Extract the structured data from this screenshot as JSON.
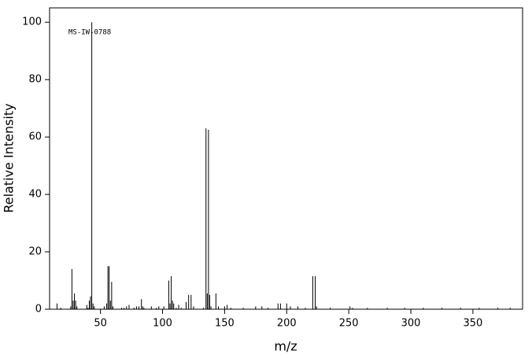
{
  "chart_data": {
    "type": "spectrum",
    "annotation": "MS-IW-0788",
    "x_label": "m/z",
    "y_label": "Relative Intensity",
    "xlim": [
      9,
      390
    ],
    "ylim": [
      0,
      105
    ],
    "xticks": [
      50,
      100,
      150,
      200,
      250,
      300,
      350
    ],
    "yticks": [
      0,
      20,
      40,
      60,
      80,
      100
    ],
    "color": "#000000",
    "x": [
      15,
      18,
      26,
      27,
      28,
      29,
      30,
      31,
      39,
      40,
      41,
      42,
      43,
      44,
      45,
      53,
      55,
      56,
      57,
      58,
      59,
      60,
      67,
      69,
      71,
      73,
      77,
      79,
      81,
      83,
      84,
      85,
      91,
      95,
      97,
      101,
      105,
      106,
      107,
      108,
      109,
      111,
      113,
      115,
      119,
      121,
      123,
      125,
      133,
      135,
      136,
      137,
      138,
      139,
      143,
      145,
      150,
      152,
      155,
      165,
      175,
      180,
      185,
      193,
      195,
      200,
      203,
      209,
      215,
      221,
      223,
      224,
      235,
      251,
      253,
      265,
      281,
      295,
      310,
      325,
      340,
      355,
      370,
      380
    ],
    "values": [
      2,
      0.5,
      1,
      14,
      3,
      5.5,
      3,
      1,
      1.5,
      0.5,
      3,
      4.5,
      100,
      2,
      1,
      1,
      2,
      15,
      15,
      3,
      9.5,
      1,
      0.5,
      0.5,
      1,
      1.5,
      0.5,
      1,
      1,
      3.5,
      1,
      0.5,
      1,
      0.5,
      1,
      1,
      10,
      2,
      11.5,
      3,
      2,
      0.5,
      1.5,
      0.5,
      2.5,
      5,
      5,
      1,
      0.5,
      63,
      5.5,
      62.5,
      5,
      1,
      5.5,
      1,
      1,
      1.5,
      0.5,
      0.5,
      1,
      1,
      0.5,
      2,
      2,
      2,
      1,
      1,
      0.5,
      11.5,
      11.5,
      1,
      0.5,
      1,
      0.5,
      0.5,
      0.5,
      0.5,
      0.5,
      0.5,
      0.5,
      0.5,
      0.5,
      0.5
    ]
  }
}
